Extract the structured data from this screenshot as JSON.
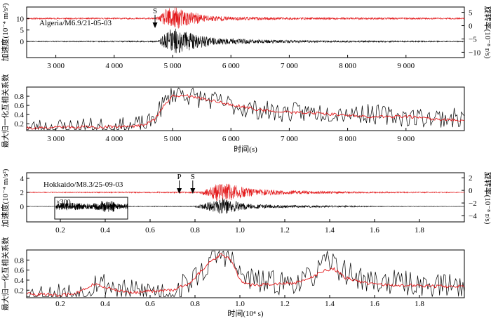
{
  "chart_data": [
    {
      "type": "line",
      "panel": "a-waveform",
      "annotation": "Algeria/M6.9/21-05-03",
      "ylabel_left": "加速度(10⁻⁴ m/s²)",
      "ylabel_right": "旋转率(10⁻⁸ r/s)",
      "left_ticks": [
        "10",
        "5",
        "0"
      ],
      "right_ticks": [
        "5",
        "0",
        "−5",
        "−10"
      ],
      "x_ticks": [
        "3 000",
        "4 000",
        "5 000",
        "6 000",
        "7 000",
        "8 000",
        "9 000"
      ],
      "xlim": [
        2500,
        10000
      ],
      "markers": [
        {
          "label": "S",
          "x": 4700
        }
      ],
      "series": [
        {
          "name": "",
          "color": "#e31a1c",
          "offset": 10,
          "envelope": [
            [
              2500,
              0.3
            ],
            [
              4700,
              0.3
            ],
            [
              4800,
              1.5
            ],
            [
              4900,
              4.5
            ],
            [
              5000,
              5.5
            ],
            [
              5100,
              4.5
            ],
            [
              5300,
              3
            ],
            [
              5600,
              1.5
            ],
            [
              6000,
              0.8
            ],
            [
              7000,
              0.5
            ],
            [
              10000,
              0.3
            ]
          ]
        },
        {
          "name": "",
          "color": "#000000",
          "offset": 0,
          "envelope": [
            [
              2500,
              0.15
            ],
            [
              4750,
              0.3
            ],
            [
              4850,
              3
            ],
            [
              5000,
              6
            ],
            [
              5150,
              5
            ],
            [
              5400,
              3
            ],
            [
              5800,
              1.5
            ],
            [
              6300,
              0.9
            ],
            [
              7500,
              0.4
            ],
            [
              10000,
              0.2
            ]
          ]
        }
      ]
    },
    {
      "type": "line",
      "panel": "a-correlation",
      "ylabel": "最大归一化互相关系数",
      "y_ticks": [
        "0.8",
        "0.6",
        "0.4",
        "0.2"
      ],
      "x_ticks": [
        "3 000",
        "4 000",
        "5 000",
        "6 000",
        "7 000",
        "8 000",
        "9 000"
      ],
      "xlabel": "时间(s)",
      "xlim": [
        2500,
        10000
      ],
      "ylim": [
        0.05,
        1.0
      ],
      "series": [
        {
          "name": "",
          "color": "#000000",
          "trend": [
            [
              2500,
              0.1
            ],
            [
              3500,
              0.12
            ],
            [
              4200,
              0.12
            ],
            [
              4600,
              0.2
            ],
            [
              4800,
              0.55
            ],
            [
              4950,
              0.8
            ],
            [
              5100,
              0.92
            ],
            [
              5300,
              0.8
            ],
            [
              5700,
              0.7
            ],
            [
              6200,
              0.55
            ],
            [
              6800,
              0.45
            ],
            [
              8000,
              0.45
            ],
            [
              9000,
              0.35
            ],
            [
              10000,
              0.32
            ]
          ],
          "noise": 0.22
        },
        {
          "name": "",
          "color": "#e31a1c",
          "points": [
            [
              2500,
              0.1
            ],
            [
              3000,
              0.12
            ],
            [
              3500,
              0.13
            ],
            [
              4000,
              0.13
            ],
            [
              4500,
              0.16
            ],
            [
              4700,
              0.3
            ],
            [
              4850,
              0.6
            ],
            [
              5000,
              0.8
            ],
            [
              5200,
              0.82
            ],
            [
              5500,
              0.75
            ],
            [
              6000,
              0.62
            ],
            [
              6500,
              0.5
            ],
            [
              7000,
              0.45
            ],
            [
              7500,
              0.43
            ],
            [
              8000,
              0.38
            ],
            [
              8500,
              0.35
            ],
            [
              9000,
              0.36
            ],
            [
              9500,
              0.3
            ],
            [
              10000,
              0.27
            ]
          ]
        }
      ]
    },
    {
      "type": "line",
      "panel": "b-waveform",
      "annotation": "Hokkaido/M8.3/25-09-03",
      "ylabel_left": "加速度(10⁻⁴ m/s²)",
      "ylabel_right": "旋转率(10⁻⁸ r/s)",
      "left_ticks": [
        "4",
        "2",
        "0"
      ],
      "right_ticks": [
        "2",
        "0",
        "−2",
        "−4"
      ],
      "x_ticks": [
        "0.2",
        "0.4",
        "0.6",
        "0.8",
        "1.0",
        "1.2",
        "1.4",
        "1.6",
        "1.8"
      ],
      "xlim": [
        0.05,
        2.0
      ],
      "markers": [
        {
          "label": "P",
          "x": 0.73
        },
        {
          "label": "S",
          "x": 0.79
        }
      ],
      "inset_label": "×300",
      "series": [
        {
          "name": "",
          "color": "#e31a1c",
          "offset": 2,
          "envelope": [
            [
              0.05,
              0.05
            ],
            [
              0.82,
              0.1
            ],
            [
              0.86,
              0.7
            ],
            [
              0.92,
              1.5
            ],
            [
              0.97,
              1.1
            ],
            [
              1.05,
              0.55
            ],
            [
              1.2,
              0.3
            ],
            [
              1.5,
              0.12
            ],
            [
              2.0,
              0.05
            ]
          ]
        },
        {
          "name": "",
          "color": "#000000",
          "offset": 0,
          "envelope": [
            [
              0.05,
              0.02
            ],
            [
              0.79,
              0.05
            ],
            [
              0.82,
              0.25
            ],
            [
              0.88,
              0.8
            ],
            [
              0.92,
              1.2
            ],
            [
              0.98,
              0.8
            ],
            [
              1.05,
              0.35
            ],
            [
              1.2,
              0.18
            ],
            [
              1.45,
              0.12
            ],
            [
              1.6,
              0.05
            ],
            [
              2.0,
              0.02
            ]
          ]
        }
      ]
    },
    {
      "type": "line",
      "panel": "b-correlation",
      "ylabel": "最大归一化互相关系数",
      "y_ticks": [
        "0.8",
        "0.6",
        "0.4",
        "0.2"
      ],
      "x_ticks": [
        "0.2",
        "0.4",
        "0.6",
        "0.8",
        "1.0",
        "1.2",
        "1.4",
        "1.6",
        "1.8"
      ],
      "xlabel": "时间(10⁴ s)",
      "xlim": [
        0.05,
        2.0
      ],
      "ylim": [
        0.05,
        1.0
      ],
      "series": [
        {
          "name": "",
          "color": "#000000",
          "trend": [
            [
              0.05,
              0.12
            ],
            [
              0.15,
              0.1
            ],
            [
              0.3,
              0.15
            ],
            [
              0.36,
              0.38
            ],
            [
              0.42,
              0.3
            ],
            [
              0.5,
              0.15
            ],
            [
              0.6,
              0.2
            ],
            [
              0.7,
              0.15
            ],
            [
              0.8,
              0.45
            ],
            [
              0.85,
              0.65
            ],
            [
              0.9,
              0.92
            ],
            [
              0.95,
              0.9
            ],
            [
              1.0,
              0.5
            ],
            [
              1.1,
              0.35
            ],
            [
              1.2,
              0.35
            ],
            [
              1.3,
              0.4
            ],
            [
              1.4,
              0.8
            ],
            [
              1.45,
              0.6
            ],
            [
              1.55,
              0.4
            ],
            [
              1.7,
              0.35
            ],
            [
              1.85,
              0.3
            ],
            [
              2.0,
              0.3
            ]
          ],
          "noise": 0.25
        },
        {
          "name": "",
          "color": "#e31a1c",
          "points": [
            [
              0.05,
              0.13
            ],
            [
              0.1,
              0.12
            ],
            [
              0.2,
              0.1
            ],
            [
              0.28,
              0.15
            ],
            [
              0.35,
              0.32
            ],
            [
              0.4,
              0.25
            ],
            [
              0.45,
              0.2
            ],
            [
              0.52,
              0.15
            ],
            [
              0.6,
              0.18
            ],
            [
              0.7,
              0.2
            ],
            [
              0.78,
              0.35
            ],
            [
              0.82,
              0.55
            ],
            [
              0.87,
              0.78
            ],
            [
              0.92,
              0.92
            ],
            [
              0.96,
              0.8
            ],
            [
              1.0,
              0.4
            ],
            [
              1.05,
              0.3
            ],
            [
              1.15,
              0.32
            ],
            [
              1.25,
              0.35
            ],
            [
              1.32,
              0.45
            ],
            [
              1.38,
              0.6
            ],
            [
              1.42,
              0.62
            ],
            [
              1.47,
              0.45
            ],
            [
              1.55,
              0.35
            ],
            [
              1.65,
              0.3
            ],
            [
              1.75,
              0.3
            ],
            [
              1.85,
              0.28
            ],
            [
              2.0,
              0.27
            ]
          ]
        }
      ]
    }
  ]
}
